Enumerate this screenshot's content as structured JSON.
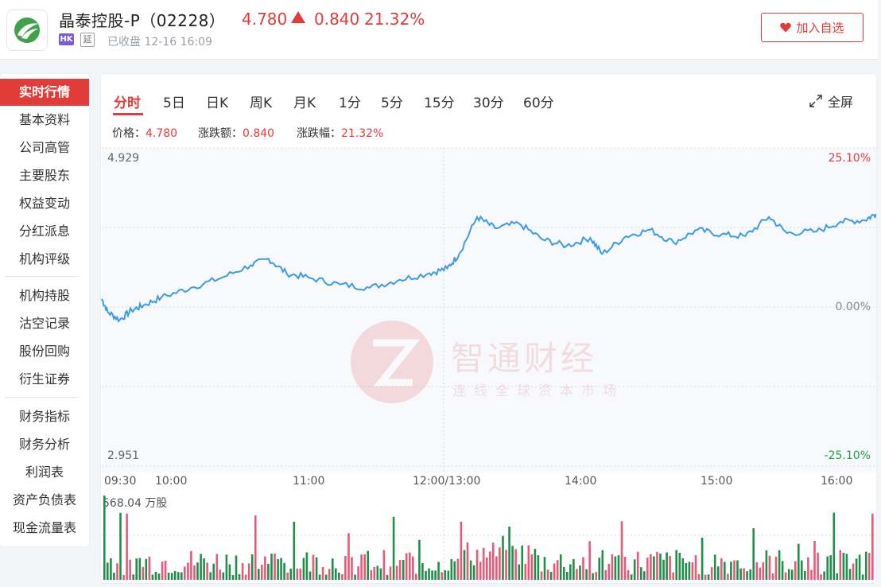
{
  "header": {
    "stock_name": "晶泰控股-P（02228）",
    "price": "4.780",
    "change": "0.840",
    "change_pct": "21.32%",
    "market_badge": "HK",
    "delay_badge": "延",
    "status": "已收盘 12-16 16:09",
    "watchlist_button": "加入自选",
    "logo_icon": "company-logo-icon"
  },
  "sidebar": {
    "items": [
      {
        "label": "实时行情",
        "active": true
      },
      {
        "label": "基本资料"
      },
      {
        "label": "公司高管"
      },
      {
        "label": "主要股东"
      },
      {
        "label": "权益变动"
      },
      {
        "label": "分红派息"
      },
      {
        "label": "机构评级"
      },
      {
        "label": "机构持股"
      },
      {
        "label": "沽空记录"
      },
      {
        "label": "股份回购"
      },
      {
        "label": "衍生证券"
      },
      {
        "label": "财务指标"
      },
      {
        "label": "财务分析"
      },
      {
        "label": "利润表"
      },
      {
        "label": "资产负债表"
      },
      {
        "label": "现金流量表"
      }
    ]
  },
  "tabs": [
    "分时",
    "5日",
    "日K",
    "周K",
    "月K",
    "1分",
    "5分",
    "15分",
    "30分",
    "60分"
  ],
  "active_tab": "分时",
  "fullscreen_label": "全屏",
  "price_info": {
    "price_label": "价格：",
    "price_value": "4.780",
    "change_label": "涨跌额：",
    "change_value": "0.840",
    "pct_label": "涨跌幅：",
    "pct_value": "21.32%"
  },
  "chart": {
    "y_max_label": "4.929",
    "y_min_label": "2.951",
    "pct_max_label": "25.10%",
    "pct_mid_label": "0.00%",
    "pct_min_label": "-25.10%",
    "time_labels": [
      "09:30",
      "10:00",
      "11:00",
      "12:00/13:00",
      "14:00",
      "15:00",
      "16:00"
    ],
    "volume_label": "568.04 万股",
    "watermark_name": "智通财经",
    "watermark_slogan": "连线全球资本市场"
  },
  "colors": {
    "up": "#e23c39",
    "down": "#1f9f4d",
    "line": "#3a9ce6",
    "vol_up": "#e55a78",
    "vol_down": "#1f8f49"
  },
  "chart_data": {
    "type": "line",
    "ylim": [
      2.951,
      4.929
    ],
    "x": [
      "09:30",
      "10:00",
      "11:00",
      "12:00/13:00",
      "14:00",
      "15:00",
      "16:00"
    ],
    "price_points": [
      [
        0,
        3.99
      ],
      [
        0.1,
        3.91
      ],
      [
        0.3,
        3.86
      ],
      [
        0.5,
        3.92
      ],
      [
        0.7,
        3.95
      ],
      [
        1,
        4.0
      ],
      [
        1.5,
        4.06
      ],
      [
        2,
        4.12
      ],
      [
        2.5,
        4.2
      ],
      [
        2.8,
        4.24
      ],
      [
        3.1,
        4.15
      ],
      [
        3.5,
        4.12
      ],
      [
        4,
        4.08
      ],
      [
        4.5,
        4.06
      ],
      [
        5,
        4.11
      ],
      [
        5.5,
        4.15
      ],
      [
        5.8,
        4.18
      ],
      [
        6,
        4.27
      ],
      [
        6.3,
        4.5
      ],
      [
        6.6,
        4.43
      ],
      [
        7,
        4.46
      ],
      [
        7.4,
        4.36
      ],
      [
        7.8,
        4.32
      ],
      [
        8.2,
        4.37
      ],
      [
        8.4,
        4.27
      ],
      [
        8.8,
        4.38
      ],
      [
        9.2,
        4.42
      ],
      [
        9.6,
        4.34
      ],
      [
        10,
        4.42
      ],
      [
        10.4,
        4.39
      ],
      [
        10.8,
        4.38
      ],
      [
        11.2,
        4.5
      ],
      [
        11.5,
        4.4
      ],
      [
        12,
        4.41
      ],
      [
        12.4,
        4.47
      ],
      [
        12.8,
        4.48
      ],
      [
        13,
        4.52
      ]
    ],
    "volume_unit": "万股",
    "volume_max": 568.04
  }
}
